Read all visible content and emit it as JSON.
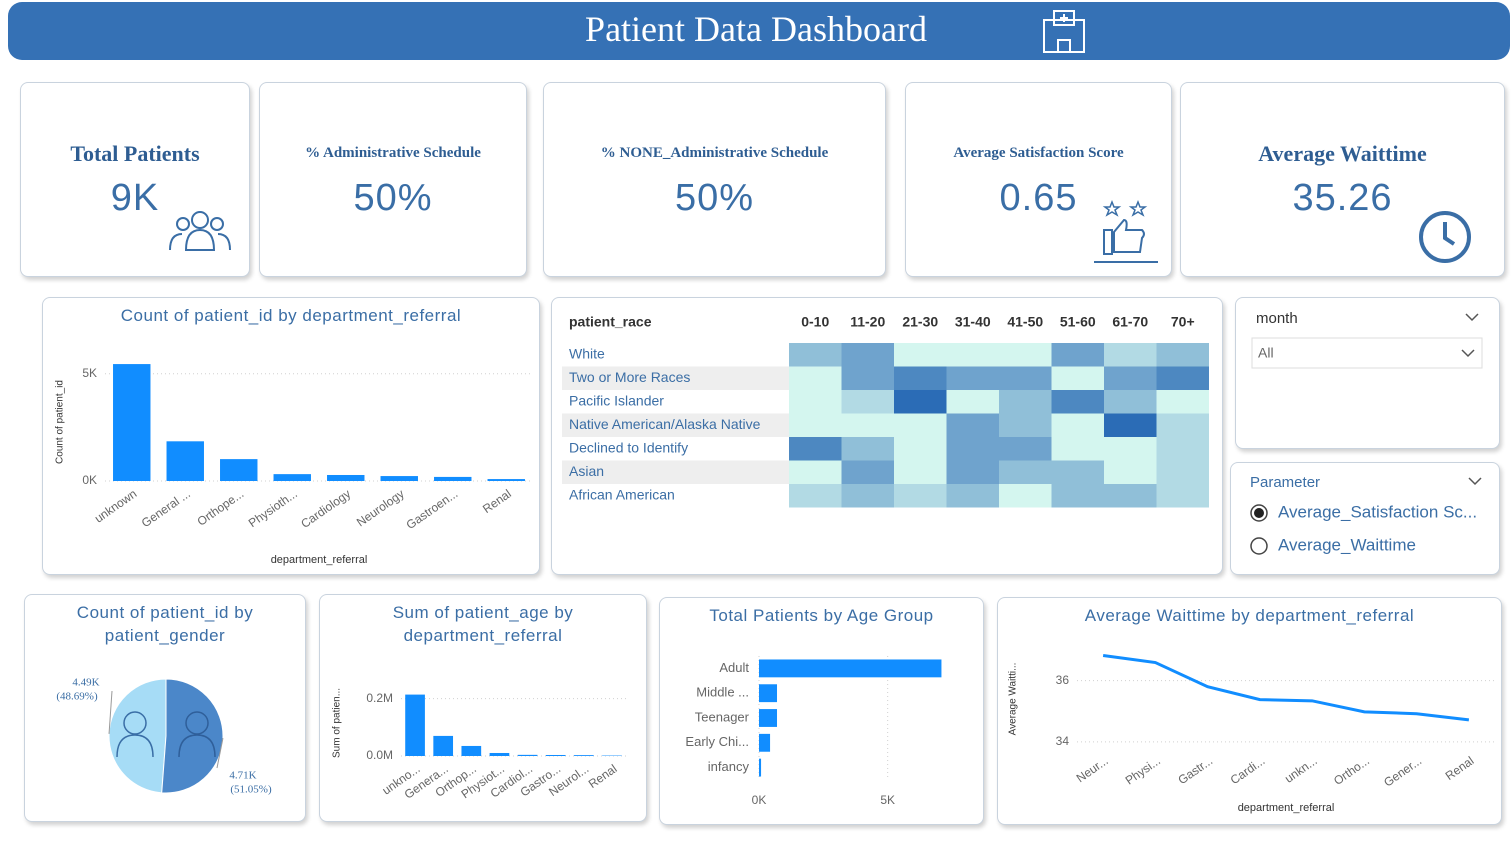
{
  "header": {
    "title": "Patient Data Dashboard"
  },
  "cards": [
    {
      "title": "Total Patients",
      "value": "9K"
    },
    {
      "title": "% Administrative Schedule",
      "value": "50%"
    },
    {
      "title": "% NONE_Administrative Schedule",
      "value": "50%"
    },
    {
      "title": "Average Satisfaction Score",
      "value": "0.65"
    },
    {
      "title": "Average Waittime",
      "value": "35.26"
    }
  ],
  "slicers": {
    "month": {
      "title": "month",
      "value": "All"
    },
    "parameter": {
      "title": "Parameter",
      "options": [
        "Average_Satisfaction Sc...",
        "Average_Waittime"
      ],
      "selected": 0
    }
  },
  "chart_data": [
    {
      "type": "bar",
      "title": "Count of patient_id by department_referral",
      "categories": [
        "unknown",
        "General ...",
        "Orthope...",
        "Physioth...",
        "Cardiology",
        "Neurology",
        "Gastroen...",
        "Renal"
      ],
      "values": [
        5450,
        1850,
        1020,
        320,
        280,
        230,
        190,
        90
      ],
      "color": "#118dff",
      "ylim": [
        0,
        5500
      ],
      "yticks": [
        {
          "value": 0,
          "label": "0K"
        },
        {
          "value": 5000,
          "label": "5K"
        }
      ],
      "xlabel": "department_referral",
      "ylabel": "Count of patient_id"
    },
    {
      "type": "heatmap",
      "row_header": "patient_race",
      "columns": [
        "0-10",
        "11-20",
        "21-30",
        "31-40",
        "41-50",
        "51-60",
        "61-70",
        "70+"
      ],
      "rows": [
        "White",
        "Two or More Races",
        "Pacific Islander",
        "Native American/Alaska Native",
        "Declined to Identify",
        "Asian",
        "African American"
      ],
      "values": [
        [
          0.63,
          0.67,
          0.55,
          0.55,
          0.55,
          0.67,
          0.59,
          0.63
        ],
        [
          0.55,
          0.67,
          0.71,
          0.67,
          0.67,
          0.55,
          0.67,
          0.71
        ],
        [
          0.55,
          0.59,
          0.75,
          0.55,
          0.63,
          0.71,
          0.63,
          0.55
        ],
        [
          0.55,
          0.55,
          0.55,
          0.67,
          0.63,
          0.55,
          0.75,
          0.59
        ],
        [
          0.71,
          0.63,
          0.55,
          0.67,
          0.67,
          0.55,
          0.55,
          0.59
        ],
        [
          0.55,
          0.67,
          0.55,
          0.67,
          0.63,
          0.63,
          0.55,
          0.59
        ],
        [
          0.59,
          0.63,
          0.59,
          0.63,
          0.55,
          0.63,
          0.63,
          0.59
        ]
      ],
      "color_range": [
        "#d4f6ef",
        "#2b6cb6"
      ]
    },
    {
      "type": "pie",
      "title": "Count of patient_id by patient_gender",
      "values": [
        4490,
        4710
      ],
      "value_labels": [
        "4.49K",
        "4.71K"
      ],
      "percent_labels": [
        "(48.69%)",
        "(51.05%)"
      ],
      "colors": [
        "#a6dcf6",
        "#4b87c9"
      ]
    },
    {
      "type": "bar",
      "title": "Sum of patient_age by department_referral",
      "categories": [
        "unkno...",
        "Genera...",
        "Orthop...",
        "Physiot...",
        "Cardiol...",
        "Gastro...",
        "Neurol...",
        "Renal"
      ],
      "values": [
        214000,
        70000,
        35000,
        10500,
        4000,
        3500,
        3000,
        1500
      ],
      "color": "#118dff",
      "ylim": [
        0,
        230000
      ],
      "yticks": [
        {
          "value": 0,
          "label": "0.0M"
        },
        {
          "value": 200000,
          "label": "0.2M"
        }
      ],
      "ylabel": "Sum of patien..."
    },
    {
      "type": "bar",
      "orientation": "horizontal",
      "title": "Total Patients by Age Group",
      "categories": [
        "Adult",
        "Middle ...",
        "Teenager",
        "Early Chi...",
        "infancy"
      ],
      "values": [
        7090,
        700,
        700,
        430,
        80
      ],
      "color": "#118dff",
      "xlim": [
        0,
        7500
      ],
      "xticks": [
        {
          "value": 0,
          "label": "0K"
        },
        {
          "value": 5000,
          "label": "5K"
        }
      ]
    },
    {
      "type": "line",
      "title": "Average Waittime by department_referral",
      "categories": [
        "Neur...",
        "Physi...",
        "Gastr...",
        "Cardi...",
        "unkn...",
        "Ortho...",
        "Gener...",
        "Renal"
      ],
      "values": [
        36.82,
        36.59,
        35.8,
        35.38,
        35.34,
        34.98,
        34.92,
        34.72
      ],
      "color": "#118dff",
      "ylim": [
        33.8,
        37
      ],
      "yticks": [
        34,
        36
      ],
      "xlabel": "department_referral",
      "ylabel": "Average Waitti..."
    }
  ]
}
